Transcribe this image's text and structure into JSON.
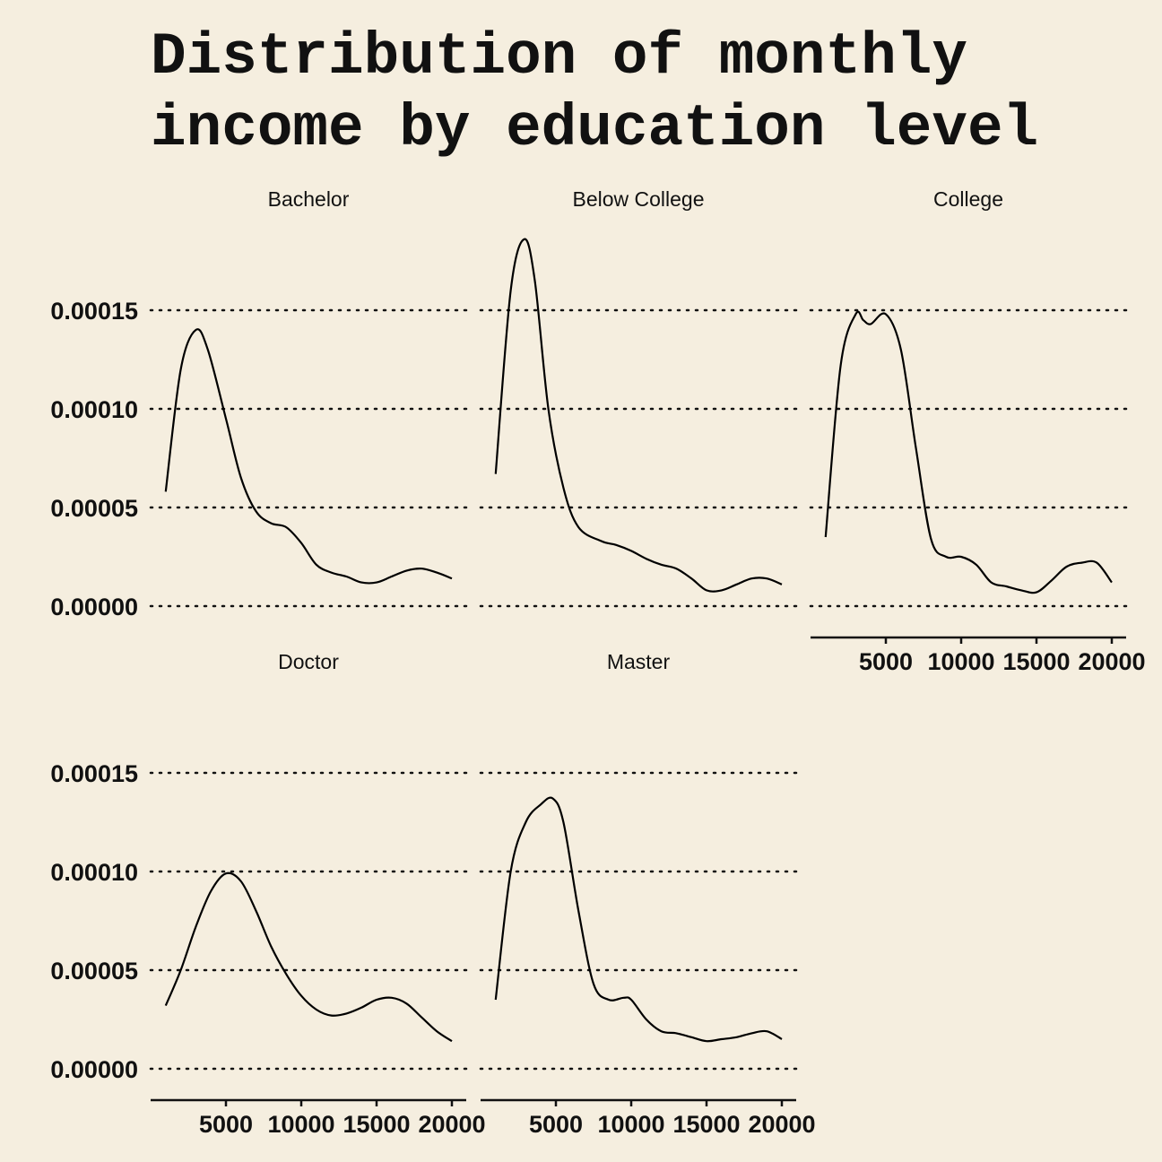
{
  "chart_data": {
    "type": "line",
    "title": "Distribution of monthly income by education level",
    "xlabel": "",
    "ylabel": "",
    "xlim": [
      1000,
      21000
    ],
    "ylim": [
      0,
      0.000185
    ],
    "y_ticks": [
      "0.00000",
      "0.00005",
      "0.00010",
      "0.00015"
    ],
    "y_tick_values": [
      0,
      5e-05,
      0.0001,
      0.00015
    ],
    "x_ticks": [
      "5000",
      "10000",
      "15000",
      "20000"
    ],
    "x_tick_values": [
      5000,
      10000,
      15000,
      20000
    ],
    "grid": "horizontal dotted",
    "facets": [
      {
        "name": "Bachelor",
        "x": [
          1000,
          2000,
          3000,
          3800,
          5000,
          6000,
          7000,
          8000,
          9000,
          10000,
          11000,
          12000,
          13000,
          14000,
          15000,
          16000,
          17000,
          18000,
          19000,
          20000
        ],
        "y": [
          5.8e-05,
          0.00012,
          0.00014,
          0.00013,
          9.5e-05,
          6.5e-05,
          4.8e-05,
          4.2e-05,
          4e-05,
          3.2e-05,
          2.1e-05,
          1.7e-05,
          1.5e-05,
          1.2e-05,
          1.2e-05,
          1.5e-05,
          1.8e-05,
          1.9e-05,
          1.7e-05,
          1.4e-05
        ]
      },
      {
        "name": "Below College",
        "x": [
          1000,
          2000,
          2900,
          3600,
          4500,
          5500,
          6500,
          8000,
          9000,
          10000,
          11000,
          12000,
          13000,
          14000,
          15000,
          16000,
          17000,
          18000,
          19000,
          20000
        ],
        "y": [
          6.7e-05,
          0.00016,
          0.000186,
          0.000165,
          0.0001,
          6e-05,
          4e-05,
          3.3e-05,
          3.1e-05,
          2.8e-05,
          2.4e-05,
          2.1e-05,
          1.9e-05,
          1.4e-05,
          8e-06,
          8e-06,
          1.1e-05,
          1.4e-05,
          1.4e-05,
          1.1e-05
        ]
      },
      {
        "name": "College",
        "x": [
          1000,
          2000,
          3000,
          3500,
          4000,
          5000,
          6000,
          7000,
          8000,
          9000,
          10000,
          11000,
          12000,
          13000,
          14000,
          15000,
          16000,
          17000,
          18000,
          19000,
          20000
        ],
        "y": [
          3.5e-05,
          0.000122,
          0.000148,
          0.000145,
          0.000143,
          0.000148,
          0.00013,
          8e-05,
          3.4e-05,
          2.5e-05,
          2.5e-05,
          2.1e-05,
          1.2e-05,
          1e-05,
          8e-06,
          7e-06,
          1.3e-05,
          2e-05,
          2.2e-05,
          2.2e-05,
          1.2e-05
        ]
      },
      {
        "name": "Doctor",
        "x": [
          1000,
          2000,
          3000,
          4000,
          5000,
          6000,
          7000,
          8000,
          9000,
          10000,
          11000,
          12000,
          13000,
          14000,
          15000,
          16000,
          17000,
          18000,
          19000,
          20000
        ],
        "y": [
          3.2e-05,
          5e-05,
          7.2e-05,
          9e-05,
          9.9e-05,
          9.5e-05,
          8e-05,
          6.2e-05,
          4.8e-05,
          3.7e-05,
          3e-05,
          2.7e-05,
          2.8e-05,
          3.1e-05,
          3.5e-05,
          3.6e-05,
          3.3e-05,
          2.6e-05,
          1.9e-05,
          1.4e-05
        ]
      },
      {
        "name": "Master",
        "x": [
          1000,
          2000,
          3000,
          4000,
          4800,
          5500,
          6500,
          7500,
          8500,
          9500,
          10000,
          11000,
          12000,
          13000,
          14000,
          15000,
          16000,
          17000,
          18000,
          19000,
          20000
        ],
        "y": [
          3.5e-05,
          0.0001,
          0.000125,
          0.000134,
          0.000137,
          0.000125,
          8e-05,
          4.3e-05,
          3.5e-05,
          3.6e-05,
          3.5e-05,
          2.5e-05,
          1.9e-05,
          1.8e-05,
          1.6e-05,
          1.4e-05,
          1.5e-05,
          1.6e-05,
          1.8e-05,
          1.9e-05,
          1.5e-05
        ]
      }
    ]
  },
  "colors": {
    "background": "#f5eedf",
    "curve": "#000000",
    "text": "#111111"
  }
}
